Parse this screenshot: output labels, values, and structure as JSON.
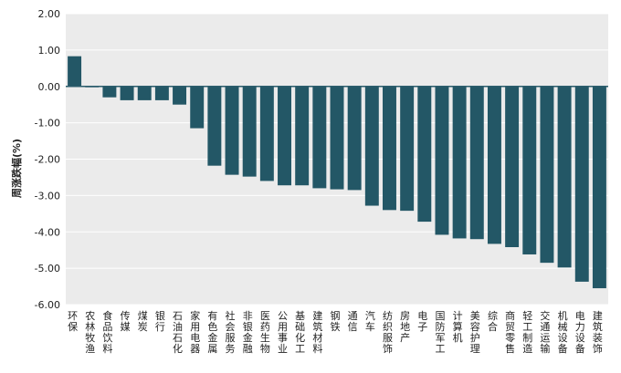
{
  "colors": {
    "bar": "#235766",
    "plot_background": "#ebebeb",
    "zero_line": "#2b5d6c",
    "grid": "#ffffff"
  },
  "chart_data": {
    "type": "bar",
    "title": "",
    "xlabel": "",
    "ylabel": "周涨跌幅(%)",
    "ylim": [
      -6.0,
      2.0
    ],
    "yticks": [
      "2.00",
      "1.00",
      "0.00",
      "-1.00",
      "-2.00",
      "-3.00",
      "-4.00",
      "-5.00",
      "-6.00"
    ],
    "grid": true,
    "categories": [
      "环保",
      "农林牧渔",
      "食品饮料",
      "传媒",
      "煤炭",
      "银行",
      "石油石化",
      "家用电器",
      "有色金属",
      "社会服务",
      "非银金融",
      "医药生物",
      "公用事业",
      "基础化工",
      "建筑材料",
      "钢铁",
      "通信",
      "汽车",
      "纺织服饰",
      "房地产",
      "电子",
      "国防军工",
      "计算机",
      "美容护理",
      "综合",
      "商贸零售",
      "轻工制造",
      "交通运输",
      "机械设备",
      "电力设备",
      "建筑装饰"
    ],
    "values": [
      0.83,
      -0.02,
      -0.3,
      -0.38,
      -0.38,
      -0.38,
      -0.5,
      -1.15,
      -2.18,
      -2.43,
      -2.48,
      -2.6,
      -2.72,
      -2.72,
      -2.8,
      -2.83,
      -2.85,
      -3.28,
      -3.4,
      -3.42,
      -3.72,
      -4.08,
      -4.18,
      -4.2,
      -4.33,
      -4.42,
      -4.62,
      -4.85,
      -4.98,
      -5.37,
      -5.55
    ]
  }
}
